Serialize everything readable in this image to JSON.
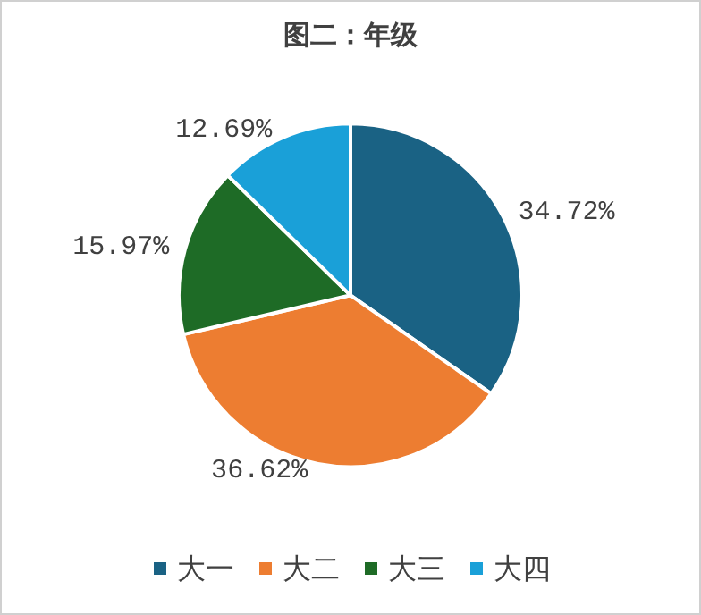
{
  "chart_data": {
    "type": "pie",
    "title": "图二：年级",
    "categories": [
      "大一",
      "大二",
      "大三",
      "大四"
    ],
    "values": [
      34.72,
      36.62,
      15.97,
      12.69
    ],
    "colors": [
      "#1a6284",
      "#ed7d31",
      "#1e6b26",
      "#1aa0d8"
    ],
    "value_labels": [
      "34.72%",
      "36.62%",
      "15.97%",
      "12.69%"
    ],
    "legend": "bottom"
  }
}
